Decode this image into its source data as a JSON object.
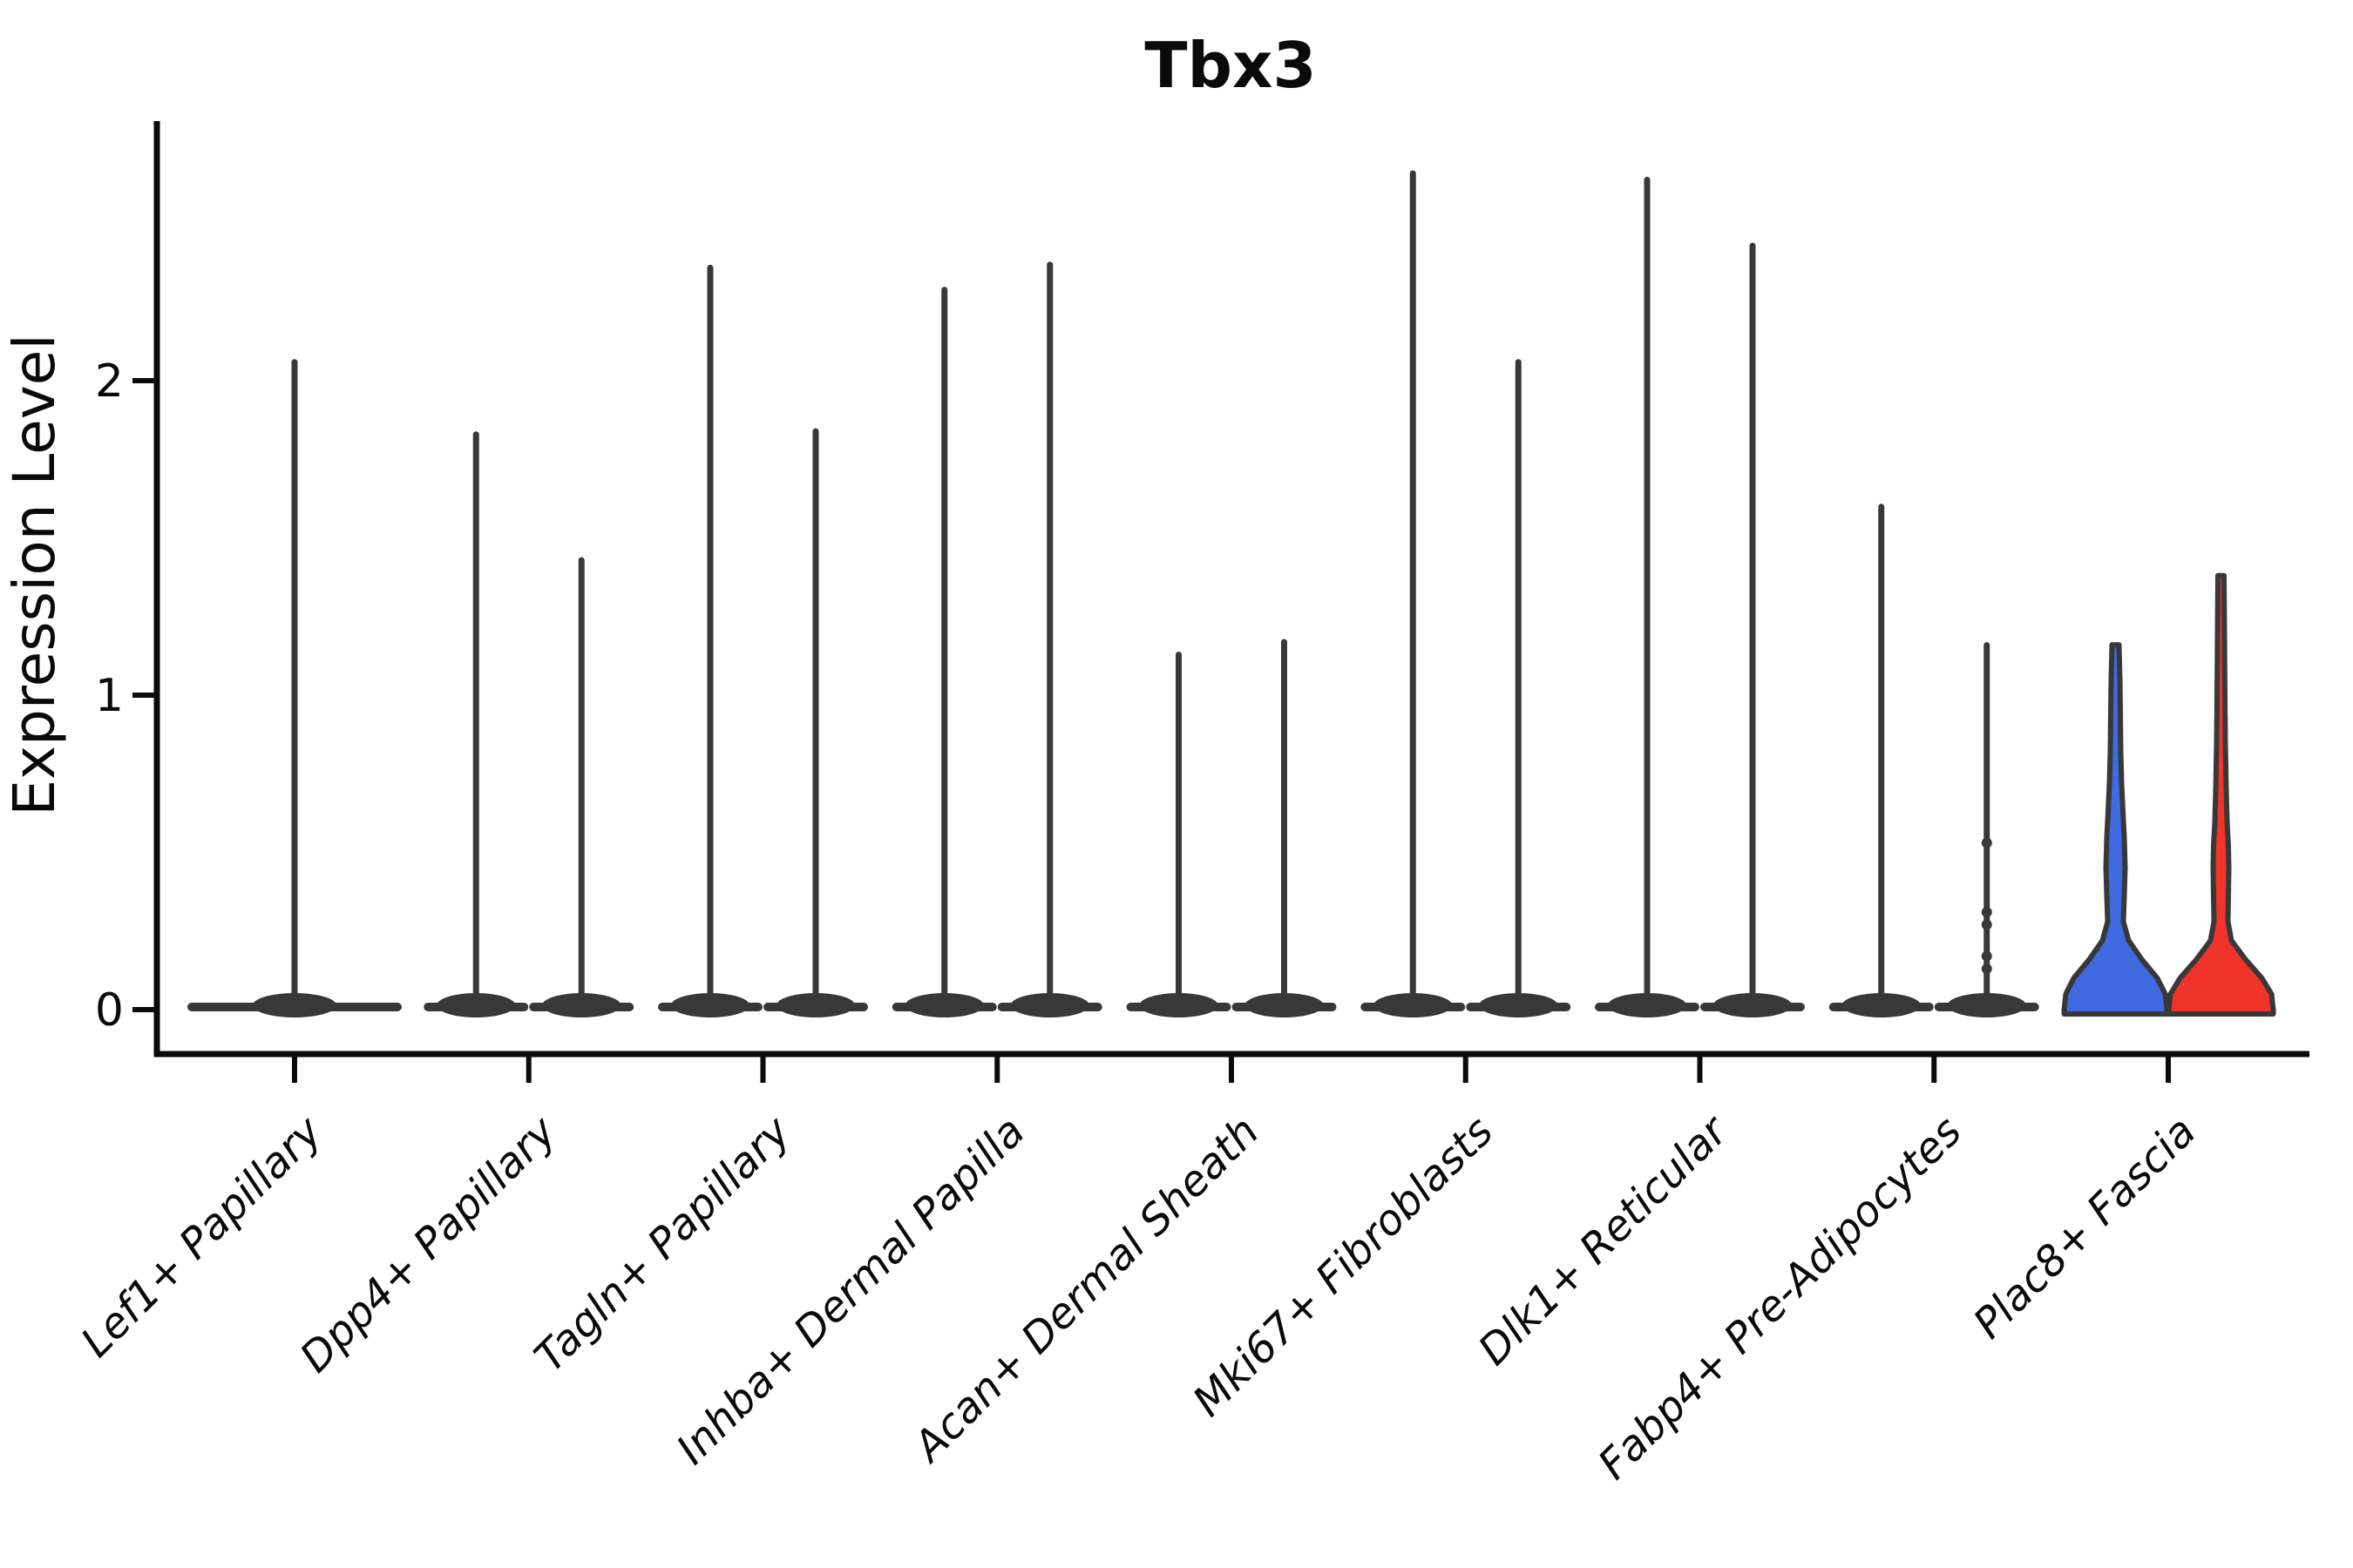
{
  "title": "Tbx3",
  "colors": {
    "background": "#ffffff",
    "axis_ink": "#0a0a0a",
    "violin_ink": "#383838",
    "blue": "#3F6AE0",
    "red": "#F2332A"
  },
  "chart_data": {
    "type": "violin",
    "title": "Tbx3",
    "xlabel": "",
    "ylabel": "Expression Level",
    "y_ticks": [
      0,
      1,
      2
    ],
    "ylim": [
      0,
      2.8
    ],
    "legend": "none",
    "split": true,
    "categories": [
      "Lef1+ Papillary",
      "Dpp4+ Papillary",
      "Tagln+ Papillary",
      "Inhba+ Dermal Papilla",
      "Acan+ Dermal Sheath",
      "Mki67+ Fibroblasts",
      "Dlk1+ Reticular",
      "Fabp4+ Pre-Adipocytes",
      "Plac8+ Fascia"
    ],
    "violins": [
      {
        "category": "Lef1+ Papillary",
        "side": "center",
        "shape": "spike",
        "max": 2.07
      },
      {
        "category": "Dpp4+ Papillary",
        "side": "left",
        "shape": "spike",
        "max": 1.84
      },
      {
        "category": "Dpp4+ Papillary",
        "side": "right",
        "shape": "spike",
        "max": 1.44
      },
      {
        "category": "Tagln+ Papillary",
        "side": "left",
        "shape": "spike",
        "max": 2.37
      },
      {
        "category": "Tagln+ Papillary",
        "side": "right",
        "shape": "spike",
        "max": 1.85
      },
      {
        "category": "Inhba+ Dermal Papilla",
        "side": "left",
        "shape": "spike",
        "max": 2.3
      },
      {
        "category": "Inhba+ Dermal Papilla",
        "side": "right",
        "shape": "spike",
        "max": 2.38
      },
      {
        "category": "Acan+ Dermal Sheath",
        "side": "left",
        "shape": "spike",
        "max": 1.14
      },
      {
        "category": "Acan+ Dermal Sheath",
        "side": "right",
        "shape": "spike",
        "max": 1.18
      },
      {
        "category": "Mki67+ Fibroblasts",
        "side": "left",
        "shape": "spike",
        "max": 2.67
      },
      {
        "category": "Mki67+ Fibroblasts",
        "side": "right",
        "shape": "spike",
        "max": 2.07
      },
      {
        "category": "Dlk1+ Reticular",
        "side": "left",
        "shape": "spike",
        "max": 2.65
      },
      {
        "category": "Dlk1+ Reticular",
        "side": "right",
        "shape": "spike",
        "max": 2.44
      },
      {
        "category": "Fabp4+ Pre-Adipocytes",
        "side": "left",
        "shape": "spike",
        "max": 1.61
      },
      {
        "category": "Fabp4+ Pre-Adipocytes",
        "side": "right",
        "shape": "spike",
        "max": 1.17,
        "dots": [
          0.53,
          0.31,
          0.27,
          0.17,
          0.13
        ]
      },
      {
        "category": "Plac8+ Fascia",
        "side": "left",
        "shape": "violin",
        "fill": "#3F6AE0",
        "max": 1.16,
        "profile": [
          [
            0,
            59
          ],
          [
            0.05,
            57
          ],
          [
            0.1,
            48
          ],
          [
            0.16,
            30
          ],
          [
            0.22,
            15
          ],
          [
            0.28,
            9
          ],
          [
            0.36,
            10
          ],
          [
            0.45,
            11
          ],
          [
            0.55,
            10
          ],
          [
            0.63,
            8.5
          ],
          [
            0.72,
            7
          ],
          [
            0.82,
            6
          ],
          [
            0.95,
            5.5
          ],
          [
            1.05,
            5
          ],
          [
            1.16,
            4
          ]
        ]
      },
      {
        "category": "Plac8+ Fascia",
        "side": "right",
        "shape": "violin",
        "fill": "#F2332A",
        "max": 1.38,
        "profile": [
          [
            0,
            60
          ],
          [
            0.05,
            58
          ],
          [
            0.1,
            47
          ],
          [
            0.16,
            28
          ],
          [
            0.22,
            12
          ],
          [
            0.28,
            8
          ],
          [
            0.36,
            8.5
          ],
          [
            0.45,
            9
          ],
          [
            0.52,
            8.5
          ],
          [
            0.6,
            7
          ],
          [
            0.7,
            6
          ],
          [
            0.85,
            5
          ],
          [
            1.0,
            4.5
          ],
          [
            1.2,
            4
          ],
          [
            1.38,
            3.5
          ]
        ]
      }
    ]
  }
}
